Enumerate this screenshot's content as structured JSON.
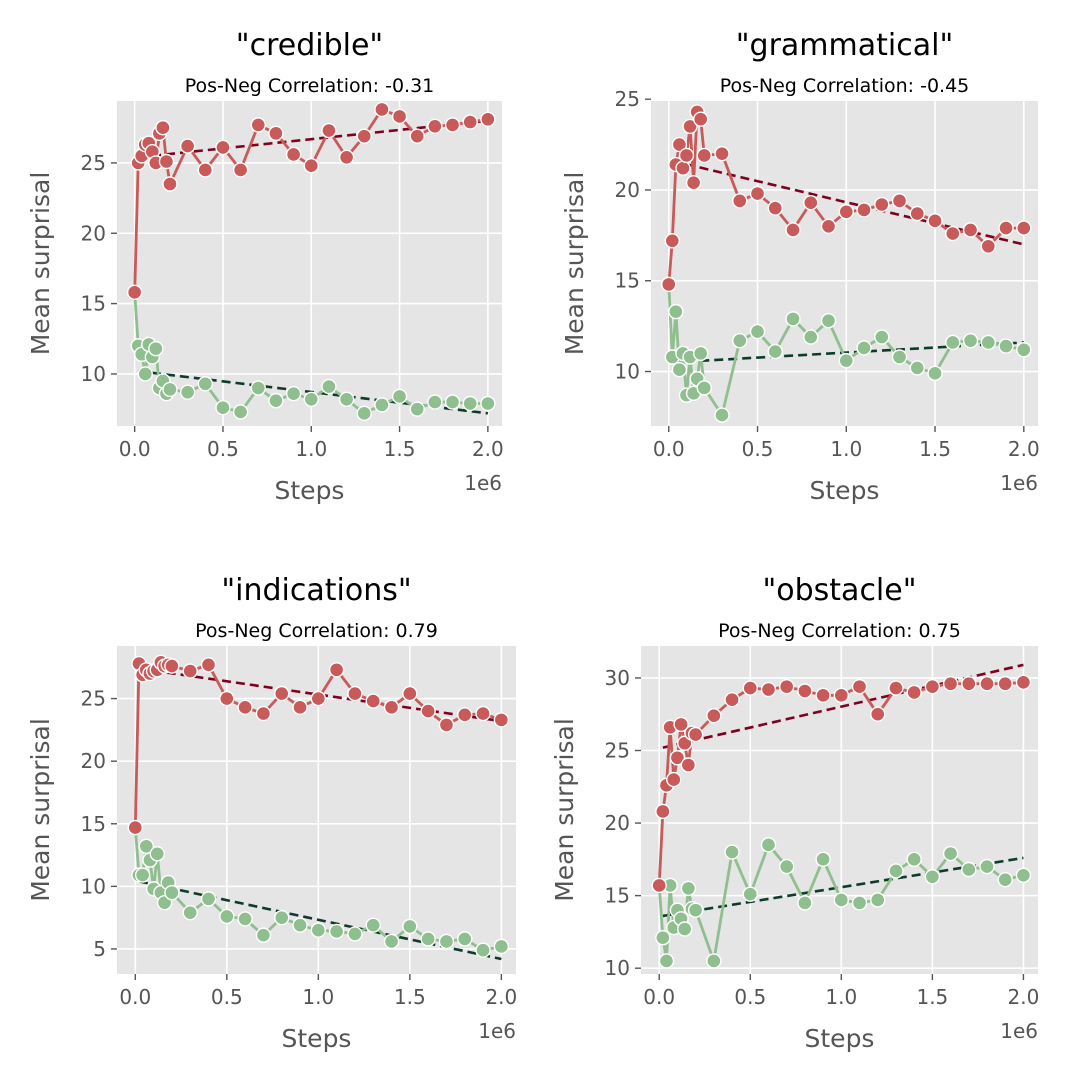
{
  "colors": {
    "background": "#e5e5e5",
    "grid": "#ffffff",
    "pos": "#c85a5a",
    "neg": "#8fbf8f",
    "pos_trend": "#800020",
    "neg_trend": "#0d3d28",
    "marker_edge": "#ffffff"
  },
  "chart_data": [
    {
      "type": "line",
      "title": "\"credible\"",
      "subtitle": "Pos-Neg Correlation: -0.31",
      "xlabel": "Steps",
      "ylabel": "Mean surprisal",
      "x_offset_label": "1e6",
      "xlim": [
        -0.1,
        2.08
      ],
      "ylim": [
        6.3,
        29.4
      ],
      "xticks": [
        0,
        0.5,
        1.0,
        1.5,
        2.0
      ],
      "xtick_labels": [
        "0.0",
        "0.5",
        "1.0",
        "1.5",
        "2.0"
      ],
      "yticks": [
        10,
        15,
        20,
        25
      ],
      "ytick_labels": [
        "10",
        "15",
        "20",
        "25"
      ],
      "grid": true,
      "x": [
        0,
        0.02,
        0.04,
        0.06,
        0.08,
        0.1,
        0.12,
        0.14,
        0.16,
        0.18,
        0.2,
        0.3,
        0.4,
        0.5,
        0.6,
        0.7,
        0.8,
        0.9,
        1.0,
        1.1,
        1.2,
        1.3,
        1.4,
        1.5,
        1.6,
        1.7,
        1.8,
        1.9,
        2.0
      ],
      "series": [
        {
          "role": "pos",
          "values": [
            15.8,
            25.0,
            25.5,
            26.3,
            26.4,
            25.8,
            25.0,
            27.1,
            27.5,
            25.1,
            23.5,
            26.2,
            24.5,
            26.1,
            24.5,
            27.7,
            27.1,
            25.6,
            24.8,
            27.3,
            25.4,
            26.9,
            28.8,
            28.3,
            26.9,
            27.6,
            27.7,
            27.9,
            28.1
          ]
        },
        {
          "role": "neg",
          "values": [
            15.8,
            12.0,
            11.4,
            10.0,
            12.1,
            11.2,
            11.8,
            9.0,
            9.5,
            8.6,
            8.9,
            8.7,
            9.3,
            7.6,
            7.3,
            9.0,
            8.1,
            8.6,
            8.2,
            9.1,
            8.2,
            7.2,
            7.8,
            8.4,
            7.5,
            8.0,
            8.0,
            7.9,
            7.9
          ]
        }
      ],
      "trends": [
        {
          "role": "pos",
          "x": [
            0.02,
            2.0
          ],
          "y": [
            25.4,
            28.0
          ]
        },
        {
          "role": "neg",
          "x": [
            0.02,
            2.0
          ],
          "y": [
            10.2,
            7.2
          ]
        }
      ]
    },
    {
      "type": "line",
      "title": "\"grammatical\"",
      "subtitle": "Pos-Neg Correlation: -0.45",
      "xlabel": "Steps",
      "ylabel": "Mean surprisal",
      "x_offset_label": "1e6",
      "xlim": [
        -0.1,
        2.08
      ],
      "ylim": [
        7.0,
        24.9
      ],
      "xticks": [
        0,
        0.5,
        1.0,
        1.5,
        2.0
      ],
      "xtick_labels": [
        "0.0",
        "0.5",
        "1.0",
        "1.5",
        "2.0"
      ],
      "yticks": [
        10,
        15,
        20,
        25
      ],
      "ytick_labels": [
        "10",
        "15",
        "20",
        "25"
      ],
      "grid": true,
      "x": [
        0,
        0.02,
        0.04,
        0.06,
        0.08,
        0.1,
        0.12,
        0.14,
        0.16,
        0.18,
        0.2,
        0.3,
        0.4,
        0.5,
        0.6,
        0.7,
        0.8,
        0.9,
        1.0,
        1.1,
        1.2,
        1.3,
        1.4,
        1.5,
        1.6,
        1.7,
        1.8,
        1.9,
        2.0
      ],
      "series": [
        {
          "role": "pos",
          "values": [
            14.8,
            17.2,
            21.4,
            22.5,
            21.2,
            21.9,
            23.5,
            20.4,
            24.3,
            23.9,
            21.9,
            22.0,
            19.4,
            19.8,
            19.0,
            17.8,
            19.3,
            18.0,
            18.8,
            18.9,
            19.2,
            19.4,
            18.7,
            18.3,
            17.6,
            17.8,
            16.9,
            17.9,
            17.9
          ]
        },
        {
          "role": "neg",
          "values": [
            14.8,
            10.8,
            13.3,
            10.1,
            11.0,
            8.7,
            10.8,
            8.8,
            9.6,
            11.0,
            9.1,
            7.6,
            11.7,
            12.2,
            11.1,
            12.9,
            11.9,
            12.8,
            10.6,
            11.3,
            11.9,
            10.8,
            10.2,
            9.9,
            11.6,
            11.7,
            11.6,
            11.4,
            11.2
          ]
        }
      ],
      "trends": [
        {
          "role": "pos",
          "x": [
            0.02,
            2.0
          ],
          "y": [
            21.6,
            17.0
          ]
        },
        {
          "role": "neg",
          "x": [
            0.02,
            2.0
          ],
          "y": [
            10.5,
            11.6
          ]
        }
      ]
    },
    {
      "type": "line",
      "title": "\"indications\"",
      "subtitle": "Pos-Neg Correlation: 0.79",
      "xlabel": "Steps",
      "ylabel": "Mean surprisal",
      "x_offset_label": "1e6",
      "xlim": [
        -0.1,
        2.08
      ],
      "ylim": [
        3.0,
        29.2
      ],
      "xticks": [
        0,
        0.5,
        1.0,
        1.5,
        2.0
      ],
      "xtick_labels": [
        "0.0",
        "0.5",
        "1.0",
        "1.5",
        "2.0"
      ],
      "yticks": [
        5,
        10,
        15,
        20,
        25
      ],
      "ytick_labels": [
        "5",
        "10",
        "15",
        "20",
        "25"
      ],
      "grid": true,
      "x": [
        0,
        0.02,
        0.04,
        0.06,
        0.08,
        0.1,
        0.12,
        0.14,
        0.16,
        0.18,
        0.2,
        0.3,
        0.4,
        0.5,
        0.6,
        0.7,
        0.8,
        0.9,
        1.0,
        1.1,
        1.2,
        1.3,
        1.4,
        1.5,
        1.6,
        1.7,
        1.8,
        1.9,
        2.0
      ],
      "series": [
        {
          "role": "pos",
          "values": [
            14.7,
            27.8,
            26.9,
            27.3,
            27.0,
            27.2,
            27.3,
            27.9,
            27.6,
            27.7,
            27.6,
            27.2,
            27.7,
            25.0,
            24.3,
            23.8,
            25.4,
            24.3,
            25.0,
            27.3,
            25.4,
            24.8,
            24.3,
            25.4,
            24.0,
            22.9,
            23.7,
            23.8,
            23.3
          ]
        },
        {
          "role": "neg",
          "values": [
            14.7,
            10.9,
            10.9,
            13.2,
            12.1,
            9.8,
            12.6,
            9.5,
            8.7,
            10.3,
            9.5,
            7.9,
            9.0,
            7.6,
            7.4,
            6.1,
            7.5,
            6.9,
            6.5,
            6.4,
            6.2,
            6.9,
            5.6,
            6.8,
            5.8,
            5.6,
            5.8,
            4.9,
            5.2
          ]
        }
      ],
      "trends": [
        {
          "role": "pos",
          "x": [
            0.02,
            2.0
          ],
          "y": [
            27.4,
            23.2
          ]
        },
        {
          "role": "neg",
          "x": [
            0.02,
            2.0
          ],
          "y": [
            10.4,
            4.2
          ]
        }
      ]
    },
    {
      "type": "line",
      "title": "\"obstacle\"",
      "subtitle": "Pos-Neg Correlation: 0.75",
      "xlabel": "Steps",
      "ylabel": "Mean surprisal",
      "x_offset_label": "1e6",
      "xlim": [
        -0.1,
        2.08
      ],
      "ylim": [
        9.6,
        32.2
      ],
      "xticks": [
        0,
        0.5,
        1.0,
        1.5,
        2.0
      ],
      "xtick_labels": [
        "0.0",
        "0.5",
        "1.0",
        "1.5",
        "2.0"
      ],
      "yticks": [
        10,
        15,
        20,
        25,
        30
      ],
      "ytick_labels": [
        "10",
        "15",
        "20",
        "25",
        "30"
      ],
      "grid": true,
      "x": [
        0,
        0.02,
        0.04,
        0.06,
        0.08,
        0.1,
        0.12,
        0.14,
        0.16,
        0.18,
        0.2,
        0.3,
        0.4,
        0.5,
        0.6,
        0.7,
        0.8,
        0.9,
        1.0,
        1.1,
        1.2,
        1.3,
        1.4,
        1.5,
        1.6,
        1.7,
        1.8,
        1.9,
        2.0
      ],
      "series": [
        {
          "role": "pos",
          "values": [
            15.7,
            20.8,
            22.6,
            26.6,
            23.0,
            24.5,
            26.8,
            25.5,
            24.0,
            26.2,
            26.1,
            27.4,
            28.5,
            29.3,
            29.2,
            29.4,
            29.1,
            28.8,
            28.8,
            29.4,
            27.5,
            29.3,
            29.0,
            29.4,
            29.6,
            29.6,
            29.6,
            29.6,
            29.7
          ]
        },
        {
          "role": "neg",
          "values": [
            15.7,
            12.1,
            10.5,
            15.7,
            12.8,
            14.0,
            13.4,
            12.7,
            15.5,
            14.1,
            14.0,
            10.5,
            18.0,
            15.1,
            18.5,
            17.0,
            14.5,
            17.5,
            14.7,
            14.5,
            14.7,
            16.7,
            17.5,
            16.3,
            17.9,
            16.8,
            17.0,
            16.1,
            16.4
          ]
        }
      ],
      "trends": [
        {
          "role": "pos",
          "x": [
            0.02,
            2.0
          ],
          "y": [
            25.2,
            30.9
          ]
        },
        {
          "role": "neg",
          "x": [
            0.02,
            2.0
          ],
          "y": [
            13.6,
            17.6
          ]
        }
      ]
    }
  ]
}
